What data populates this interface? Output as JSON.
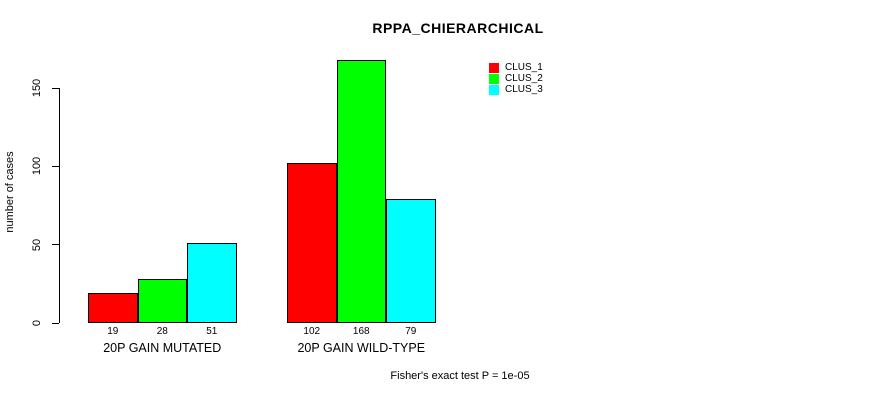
{
  "chart_data": {
    "type": "bar",
    "title": "RPPA_CHIERARCHICAL",
    "ylabel": "number of cases",
    "xlabel": "",
    "categories": [
      "20P GAIN MUTATED",
      "20P GAIN WILD-TYPE"
    ],
    "series": [
      {
        "name": "CLUS_1",
        "color": "#ff0000",
        "values": [
          19,
          102
        ]
      },
      {
        "name": "CLUS_2",
        "color": "#00ff00",
        "values": [
          28,
          168
        ]
      },
      {
        "name": "CLUS_3",
        "color": "#00ffff",
        "values": [
          51,
          79
        ]
      }
    ],
    "yticks": [
      0,
      50,
      100,
      150
    ],
    "ylim": [
      0,
      170
    ],
    "bar_value_labels": true,
    "grid": false,
    "legend_position": "upper-right",
    "annotation": "Fisher's exact test P = 1e-05"
  }
}
